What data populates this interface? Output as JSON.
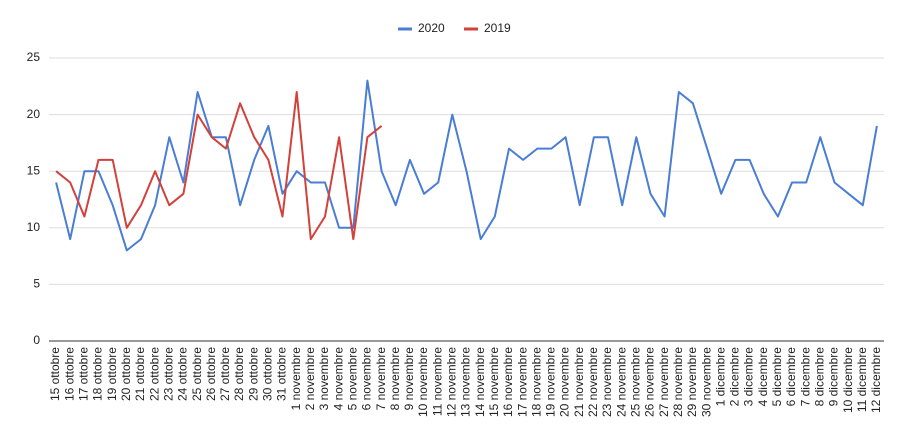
{
  "chart_data": {
    "type": "line",
    "categories": [
      "15 ottobre",
      "16 ottobre",
      "17 ottobre",
      "18 ottobre",
      "19 ottobre",
      "20 ottobre",
      "21 ottobre",
      "22 ottobre",
      "23 ottobre",
      "24 ottobre",
      "25 ottobre",
      "26 ottobre",
      "27 ottobre",
      "28 ottobre",
      "29 ottobre",
      "30 ottobre",
      "31 ottobre",
      "1 novembre",
      "2 novembre",
      "3 novembre",
      "4 novembre",
      "5 novembre",
      "6 novembre",
      "7 novembre",
      "8 novembre",
      "9 novembre",
      "10 novembre",
      "11 novembre",
      "12 novembre",
      "13 novembre",
      "14 novembre",
      "15 novembre",
      "16 novembre",
      "17 novembre",
      "18 novembre",
      "19 novembre",
      "20 novembre",
      "21 novembre",
      "22 novembre",
      "23 novembre",
      "24 novembre",
      "25 novembre",
      "26 novembre",
      "27 novembre",
      "28 novembre",
      "29 novembre",
      "30 novembre",
      "1 dicembre",
      "2 dicembre",
      "3 dicembre",
      "4 dicembre",
      "5 dicembre",
      "6 dicembre",
      "7 dicembre",
      "8 dicembre",
      "9 dicembre",
      "10 dicembre",
      "11 dicembre",
      "12 dicembre"
    ],
    "series": [
      {
        "name": "2020",
        "color": "#4a7dd4",
        "values": [
          14,
          9,
          15,
          15,
          12,
          8,
          9,
          12,
          18,
          14,
          22,
          18,
          18,
          12,
          16,
          19,
          13,
          15,
          14,
          14,
          10,
          10,
          23,
          15,
          12,
          16,
          13,
          14,
          20,
          15,
          9,
          11,
          17,
          16,
          17,
          17,
          18,
          12,
          18,
          18,
          12,
          18,
          13,
          11,
          22,
          21,
          17,
          13,
          16,
          16,
          13,
          11,
          14,
          14,
          18,
          14,
          13,
          12,
          19
        ]
      },
      {
        "name": "2019",
        "color": "#d2413a",
        "values": [
          15,
          14,
          11,
          16,
          16,
          10,
          12,
          15,
          12,
          13,
          20,
          18,
          17,
          21,
          18,
          16,
          11,
          22,
          9,
          11,
          18,
          9,
          18,
          19,
          null,
          null,
          null,
          null,
          null,
          null,
          null,
          null,
          null,
          null,
          null,
          null,
          null,
          null,
          null,
          null,
          null,
          null,
          null,
          null,
          null,
          null,
          null,
          null,
          null,
          null,
          null,
          null,
          null,
          null,
          null,
          null,
          null,
          null,
          null
        ]
      }
    ],
    "ylim": [
      0,
      25
    ],
    "yticks": [
      0,
      5,
      10,
      15,
      20,
      25
    ],
    "grid": true,
    "legend": "top"
  }
}
